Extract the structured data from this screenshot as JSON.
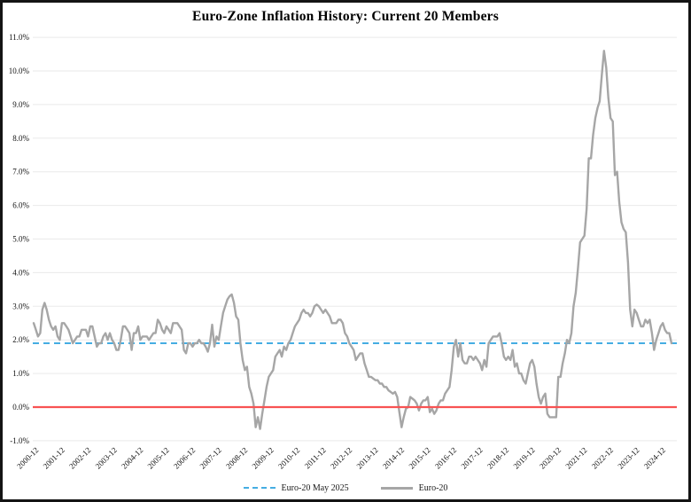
{
  "title": "Euro-Zone Inflation History: Current 20 Members",
  "colors": {
    "series_gray": "#A6A6A6",
    "reference_blue": "#45ADE2",
    "zero_red": "#F85353",
    "gridline": "#EAEAEA",
    "text": "#111111",
    "frame_border": "#141414",
    "background": "#FFFFFF"
  },
  "legend": {
    "items": [
      {
        "label": "Euro-20 May 2025",
        "style": "dashed",
        "color": "#45ADE2"
      },
      {
        "label": "Euro-20",
        "style": "solid",
        "color": "#A6A6A6"
      }
    ]
  },
  "chart_data": {
    "type": "line",
    "title": "Euro-Zone Inflation History: Current 20 Members",
    "xlabel": "",
    "ylabel": "",
    "ylim": [
      -1.0,
      11.0
    ],
    "y_tick_step": 1.0,
    "y_tick_labels": [
      "11.0%",
      "10.0%",
      "9.0%",
      "8.0%",
      "7.0%",
      "6.0%",
      "5.0%",
      "4.0%",
      "3.0%",
      "2.0%",
      "1.0%",
      "0.0%",
      "-1.0%"
    ],
    "grid": "horizontal",
    "legend_position": "bottom",
    "x_frequency": "monthly",
    "x_start": "2000-12",
    "x_end": "2025-05",
    "x_tick_interval_months": 12,
    "x_tick_labels": [
      "2000-12",
      "2001-12",
      "2002-12",
      "2003-12",
      "2004-12",
      "2005-12",
      "2006-12",
      "2007-12",
      "2008-12",
      "2009-12",
      "2010-12",
      "2011-12",
      "2012-12",
      "2013-12",
      "2014-12",
      "2015-12",
      "2016-12",
      "2017-12",
      "2018-12",
      "2019-12",
      "2020-12",
      "2021-12",
      "2022-12",
      "2023-12",
      "2024-12"
    ],
    "reference_lines": [
      {
        "name": "Euro-20 May 2025",
        "value": 1.9,
        "style": "dashed",
        "color": "#45ADE2"
      },
      {
        "name": "zero-line",
        "value": 0.0,
        "style": "solid",
        "color": "#F85353"
      }
    ],
    "series": [
      {
        "name": "Euro-20",
        "color": "#A6A6A6",
        "style": "solid",
        "values": [
          2.5,
          2.3,
          2.1,
          2.2,
          2.9,
          3.1,
          2.9,
          2.6,
          2.4,
          2.3,
          2.4,
          2.1,
          2.0,
          2.5,
          2.5,
          2.4,
          2.3,
          2.1,
          1.9,
          2.0,
          2.1,
          2.1,
          2.3,
          2.3,
          2.3,
          2.1,
          2.4,
          2.4,
          2.1,
          1.8,
          1.9,
          1.9,
          2.1,
          2.2,
          2.0,
          2.2,
          2.0,
          1.9,
          1.7,
          1.7,
          2.0,
          2.4,
          2.4,
          2.3,
          2.2,
          1.7,
          2.2,
          2.2,
          2.4,
          2.0,
          2.1,
          2.1,
          2.1,
          2.0,
          2.1,
          2.2,
          2.2,
          2.6,
          2.5,
          2.3,
          2.2,
          2.4,
          2.3,
          2.2,
          2.5,
          2.5,
          2.5,
          2.4,
          2.3,
          1.7,
          1.6,
          1.9,
          1.9,
          1.8,
          1.9,
          1.9,
          2.0,
          1.9,
          1.9,
          1.8,
          1.65,
          1.9,
          2.45,
          1.8,
          2.1,
          2.0,
          2.4,
          2.8,
          3.0,
          3.2,
          3.3,
          3.35,
          3.1,
          2.7,
          2.6,
          1.9,
          1.4,
          1.1,
          1.2,
          0.6,
          0.4,
          0.1,
          -0.6,
          -0.3,
          -0.65,
          -0.2,
          0.2,
          0.6,
          0.9,
          1.0,
          1.1,
          1.5,
          1.6,
          1.7,
          1.5,
          1.8,
          1.7,
          1.9,
          2.0,
          2.2,
          2.4,
          2.5,
          2.6,
          2.8,
          2.9,
          2.8,
          2.8,
          2.7,
          2.8,
          3.0,
          3.05,
          3.0,
          2.9,
          2.8,
          2.9,
          2.8,
          2.7,
          2.5,
          2.5,
          2.5,
          2.6,
          2.6,
          2.5,
          2.2,
          2.1,
          1.9,
          1.8,
          1.7,
          1.4,
          1.5,
          1.6,
          1.6,
          1.3,
          1.1,
          0.9,
          0.9,
          0.85,
          0.8,
          0.8,
          0.7,
          0.7,
          0.6,
          0.6,
          0.5,
          0.45,
          0.4,
          0.45,
          0.3,
          -0.15,
          -0.6,
          -0.3,
          -0.05,
          0.0,
          0.3,
          0.25,
          0.2,
          0.1,
          -0.1,
          0.1,
          0.2,
          0.2,
          0.3,
          -0.15,
          -0.05,
          -0.2,
          -0.1,
          0.1,
          0.2,
          0.2,
          0.4,
          0.5,
          0.6,
          1.1,
          1.8,
          2.0,
          1.5,
          1.9,
          1.4,
          1.3,
          1.3,
          1.5,
          1.5,
          1.4,
          1.5,
          1.4,
          1.3,
          1.1,
          1.4,
          1.2,
          1.9,
          2.0,
          2.1,
          2.1,
          2.1,
          2.2,
          1.9,
          1.5,
          1.4,
          1.5,
          1.4,
          1.7,
          1.2,
          1.3,
          1.0,
          1.0,
          0.8,
          0.7,
          1.0,
          1.3,
          1.4,
          1.2,
          0.7,
          0.3,
          0.1,
          0.3,
          0.4,
          -0.2,
          -0.3,
          -0.3,
          -0.3,
          -0.3,
          0.9,
          0.9,
          1.3,
          1.6,
          2.0,
          1.9,
          2.2,
          3.0,
          3.4,
          4.1,
          4.9,
          5.0,
          5.1,
          5.9,
          7.4,
          7.4,
          8.1,
          8.6,
          8.9,
          9.1,
          9.9,
          10.6,
          10.1,
          9.2,
          8.6,
          8.5,
          6.9,
          7.0,
          6.1,
          5.5,
          5.3,
          5.2,
          4.3,
          2.9,
          2.4,
          2.9,
          2.8,
          2.6,
          2.4,
          2.4,
          2.6,
          2.5,
          2.6,
          2.2,
          1.7,
          2.0,
          2.2,
          2.4,
          2.5,
          2.3,
          2.2,
          2.2,
          1.9
        ]
      }
    ]
  }
}
